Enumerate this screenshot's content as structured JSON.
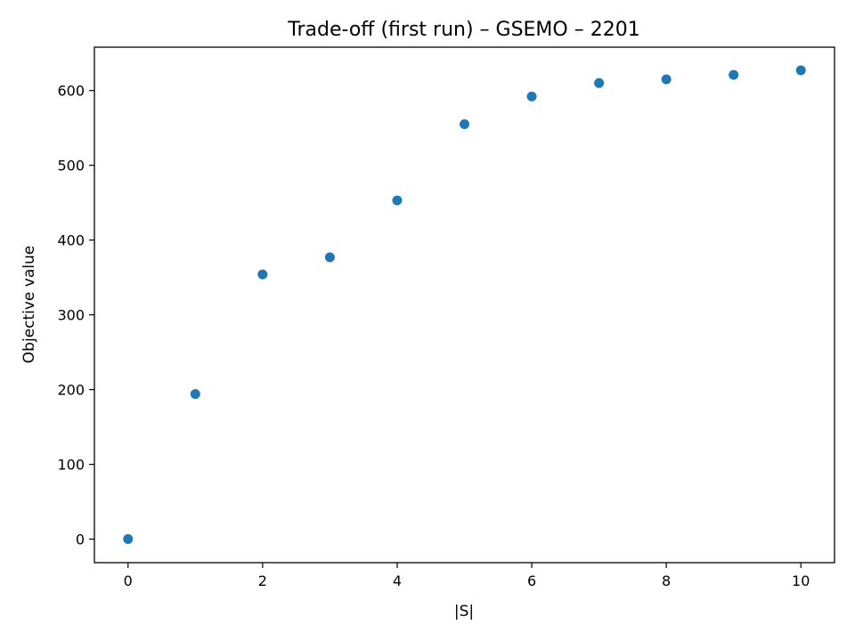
{
  "chart_data": {
    "type": "scatter",
    "title": "Trade-off (first run) – GSEMO – 2201",
    "xlabel": "|S|",
    "ylabel": "Objective value",
    "xlim": [
      -0.5,
      10.5
    ],
    "ylim": [
      -31.5,
      658
    ],
    "xticks": [
      0,
      2,
      4,
      6,
      8,
      10
    ],
    "yticks": [
      0,
      100,
      200,
      300,
      400,
      500,
      600
    ],
    "grid": false,
    "series": [
      {
        "color": "#1f77b4",
        "x": [
          0,
          1,
          2,
          3,
          4,
          5,
          6,
          7,
          8,
          9,
          10
        ],
        "y": [
          0,
          194,
          354,
          377,
          453,
          555,
          592,
          610,
          615,
          621,
          627
        ]
      }
    ]
  }
}
